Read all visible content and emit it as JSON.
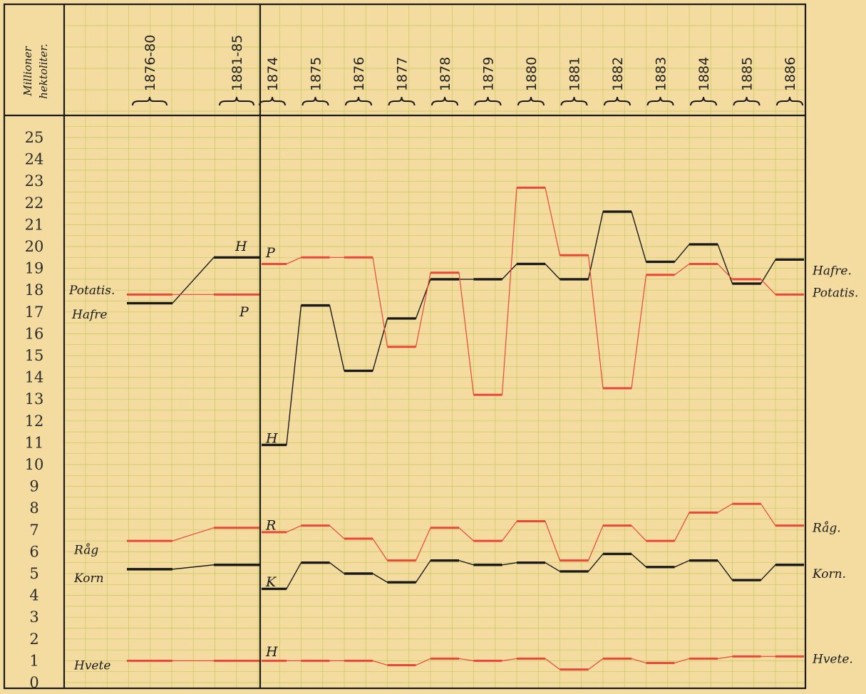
{
  "chart_data": {
    "type": "line",
    "ylabel_line1": "Millioner",
    "ylabel_line2": "hektoliter.",
    "ylim": [
      0,
      25
    ],
    "yticks": [
      0,
      1,
      2,
      3,
      4,
      5,
      6,
      7,
      8,
      9,
      10,
      11,
      12,
      13,
      14,
      15,
      16,
      17,
      18,
      19,
      20,
      21,
      22,
      23,
      24,
      25
    ],
    "average_periods": [
      "1876-80",
      "1881-85"
    ],
    "years": [
      "1874",
      "1875",
      "1876",
      "1877",
      "1878",
      "1879",
      "1880",
      "1881",
      "1882",
      "1883",
      "1884",
      "1885",
      "1886"
    ],
    "grid": true,
    "series": [
      {
        "key": "hafre",
        "color": "#1a1a1a",
        "left_label": "Hafre",
        "right_label": "Hafre.",
        "start_marker": "H",
        "avg_marker": "H",
        "averages": [
          17.4,
          19.5
        ],
        "values": [
          10.9,
          17.3,
          14.3,
          16.7,
          18.5,
          18.5,
          19.2,
          18.5,
          21.6,
          19.3,
          20.1,
          18.3,
          19.4
        ]
      },
      {
        "key": "potatis",
        "color": "#e8473a",
        "left_label": "Potatis.",
        "right_label": "Potatis.",
        "start_marker": "P",
        "avg_marker": "P",
        "averages": [
          17.8,
          17.8
        ],
        "values": [
          19.2,
          19.5,
          19.5,
          15.4,
          18.8,
          13.2,
          22.7,
          19.6,
          13.5,
          18.7,
          19.2,
          18.5,
          17.8
        ]
      },
      {
        "key": "rag",
        "color": "#e8473a",
        "left_label": "Råg",
        "right_label": "Råg.",
        "start_marker": "R",
        "averages": [
          6.5,
          7.1
        ],
        "values": [
          6.9,
          7.2,
          6.6,
          5.6,
          7.1,
          6.5,
          7.4,
          5.6,
          7.2,
          6.5,
          7.8,
          8.2,
          7.2
        ]
      },
      {
        "key": "korn",
        "color": "#1a1a1a",
        "left_label": "Korn",
        "right_label": "Korn.",
        "start_marker": "K",
        "averages": [
          5.2,
          5.4
        ],
        "values": [
          4.3,
          5.5,
          5.0,
          4.6,
          5.6,
          5.4,
          5.5,
          5.1,
          5.9,
          5.3,
          5.6,
          4.7,
          5.4
        ]
      },
      {
        "key": "hvete",
        "color": "#e8473a",
        "left_label": "Hvete",
        "right_label": "Hvete.",
        "start_marker": "H",
        "averages": [
          1.0,
          1.0
        ],
        "values": [
          1.0,
          1.0,
          1.0,
          0.8,
          1.1,
          1.0,
          1.1,
          0.6,
          1.1,
          0.9,
          1.1,
          1.2,
          1.2
        ]
      }
    ]
  }
}
